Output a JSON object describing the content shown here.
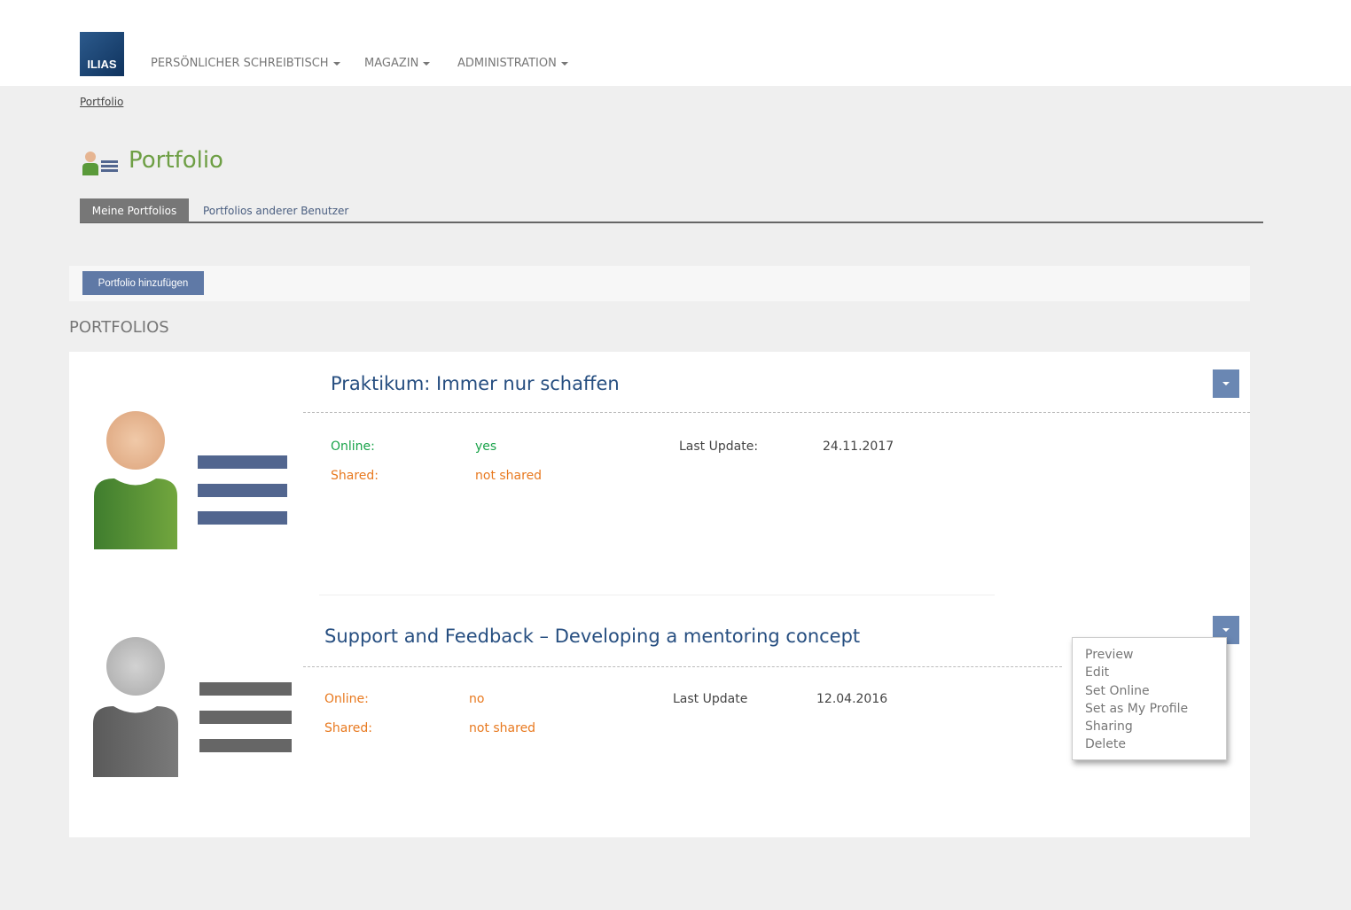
{
  "header": {
    "logo": "ILIAS",
    "nav": [
      "PERSÖNLICHER SCHREIBTISCH",
      "MAGAZIN",
      "ADMINISTRATION"
    ]
  },
  "breadcrumb": "Portfolio",
  "page_title": "Portfolio",
  "tabs": [
    {
      "label": "Meine Portfolios",
      "active": true
    },
    {
      "label": "Portfolios anderer Benutzer",
      "active": false
    }
  ],
  "toolbar": {
    "add_label": "Portfolio hinzufügen"
  },
  "section_title": "PORTFOLIOS",
  "colors": {
    "accent": "#6a87b3",
    "online_yes": "#1aa34a",
    "warning": "#e8791f",
    "title": "#264e80"
  },
  "portfolios": [
    {
      "title": "Praktikum: Immer nur schaffen",
      "online_label": "Online:",
      "online": "yes",
      "shared_label": "Shared:",
      "shared": "not shared",
      "update_label": "Last Update:",
      "update": "24.11.2017"
    },
    {
      "title": "Support and Feedback – Developing a mentoring concept",
      "online_label": "Online:",
      "online": "no",
      "shared_label": "Shared:",
      "shared": "not shared",
      "update_label": "Last Update",
      "update": "12.04.2016"
    }
  ],
  "action_menu": [
    "Preview",
    "Edit",
    "Set Online",
    "Set as My Profile",
    "Sharing",
    "Delete"
  ]
}
